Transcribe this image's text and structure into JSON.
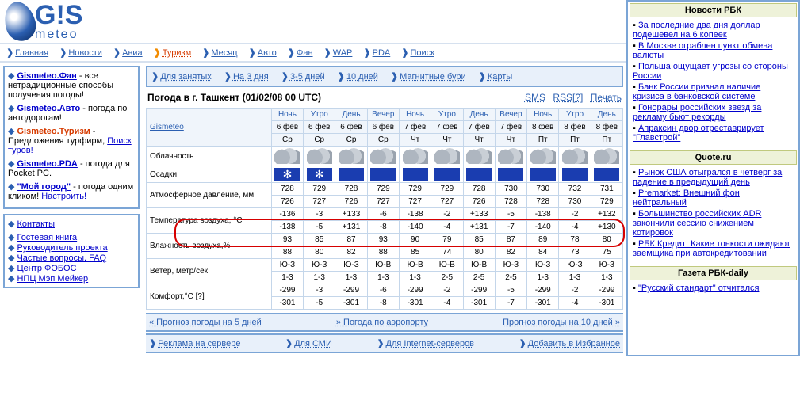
{
  "logo": {
    "brand": "G!S",
    "sub": "meteo"
  },
  "topnav": [
    {
      "label": "Главная"
    },
    {
      "label": "Новости"
    },
    {
      "label": "Авиа"
    },
    {
      "label": "Туризм",
      "active": true
    },
    {
      "label": "Месяц"
    },
    {
      "label": "Авто"
    },
    {
      "label": "Фан"
    },
    {
      "label": "WAP"
    },
    {
      "label": "PDA"
    },
    {
      "label": "Поиск"
    }
  ],
  "leftpromo": [
    {
      "t": "Gismeteo.Фан",
      "d": " - все нетрадиционные способы получения погоды!"
    },
    {
      "t": "Gismeteo.Авто",
      "d": " - погода по автодорогам!"
    },
    {
      "t": "Gismeteo.Туризм",
      "d": " - Предложения турфирм, ",
      "l": "Поиск туров!",
      "red": true
    },
    {
      "t": "Gismeteo.PDA",
      "d": " - погода для Pocket PC."
    },
    {
      "t": "\"Мой город\"",
      "d": " - погода одним кликом! ",
      "l": "Настроить!"
    }
  ],
  "leftlinks_title": "Контакты",
  "leftlinks": [
    "Гостевая книга",
    "Руководитель проекта",
    "Частые вопросы, FAQ",
    "Центр ФОБОС",
    "НПЦ Мэп Мейкер"
  ],
  "subnav": [
    "Для занятых",
    "На 3 дня",
    "3-5 дней",
    "10 дней",
    "Магнитные бури",
    "Карты"
  ],
  "forecast": {
    "title": "Погода в г. Ташкент",
    "stamp": "(01/02/08 00 UTC)",
    "rightlinks": [
      "SMS",
      "RSS[?]",
      "Печать"
    ],
    "corner": "Gismeteo",
    "cols": [
      {
        "p": "Ночь",
        "d": "6 фев",
        "w": "Ср"
      },
      {
        "p": "Утро",
        "d": "6 фев",
        "w": "Ср"
      },
      {
        "p": "День",
        "d": "6 фев",
        "w": "Ср"
      },
      {
        "p": "Вечер",
        "d": "6 фев",
        "w": "Ср"
      },
      {
        "p": "Ночь",
        "d": "7 фев",
        "w": "Чт"
      },
      {
        "p": "Утро",
        "d": "7 фев",
        "w": "Чт"
      },
      {
        "p": "День",
        "d": "7 фев",
        "w": "Чт"
      },
      {
        "p": "Вечер",
        "d": "7 фев",
        "w": "Чт"
      },
      {
        "p": "Ночь",
        "d": "8 фев",
        "w": "Пт"
      },
      {
        "p": "Утро",
        "d": "8 фев",
        "w": "Пт"
      },
      {
        "p": "День",
        "d": "8 фев",
        "w": "Пт"
      }
    ],
    "rows": {
      "cloud_label": "Облачность",
      "precip_label": "Осадки",
      "precip": [
        "snow",
        "snow",
        "rain",
        "rain",
        "rain",
        "rain",
        "rain",
        "rain",
        "rain",
        "rain",
        "rain"
      ],
      "pressure_label": "Атмосферное давление, мм",
      "pressure": [
        [
          "728",
          "729",
          "728",
          "729",
          "729",
          "729",
          "728",
          "730",
          "730",
          "732",
          "731"
        ],
        [
          "726",
          "727",
          "726",
          "727",
          "727",
          "727",
          "726",
          "728",
          "728",
          "730",
          "729"
        ]
      ],
      "temp_label": "Температура воздуха, °С",
      "temp": [
        [
          "-136",
          "-3",
          "+133",
          "-6",
          "-138",
          "-2",
          "+133",
          "-5",
          "-138",
          "-2",
          "+132"
        ],
        [
          "-138",
          "-5",
          "+131",
          "-8",
          "-140",
          "-4",
          "+131",
          "-7",
          "-140",
          "-4",
          "+130"
        ]
      ],
      "hum_label": "Влажность воздуха,%",
      "hum": [
        [
          "93",
          "85",
          "87",
          "93",
          "90",
          "79",
          "85",
          "87",
          "89",
          "78",
          "80"
        ],
        [
          "88",
          "80",
          "82",
          "88",
          "85",
          "74",
          "80",
          "82",
          "84",
          "73",
          "75"
        ]
      ],
      "wind_label": "Ветер, метр/сек",
      "wind": [
        [
          "Ю-З",
          "Ю-З",
          "Ю-З",
          "Ю-В",
          "Ю-В",
          "Ю-В",
          "Ю-В",
          "Ю-З",
          "Ю-З",
          "Ю-З",
          "Ю-З"
        ],
        [
          "1-3",
          "1-3",
          "1-3",
          "1-3",
          "1-3",
          "2-5",
          "2-5",
          "2-5",
          "1-3",
          "1-3",
          "1-3"
        ]
      ],
      "comf_label": "Комфорт,°С [?]",
      "comf": [
        [
          "-299",
          "-3",
          "-299",
          "-6",
          "-299",
          "-2",
          "-299",
          "-5",
          "-299",
          "-2",
          "-299"
        ],
        [
          "-301",
          "-5",
          "-301",
          "-8",
          "-301",
          "-4",
          "-301",
          "-7",
          "-301",
          "-4",
          "-301"
        ]
      ]
    },
    "bottomlinks": [
      "« Прогноз погоды на 5 дней",
      "» Погода по аэропорту",
      "Прогноз погоды на 10 дней »"
    ]
  },
  "footer": [
    "Реклама на сервере",
    "Для СМИ",
    "Для Internet-серверов",
    "Добавить в Избранное"
  ],
  "news": [
    {
      "title": "Новости РБК",
      "items": [
        "За последние два дня доллар подешевел на 6 копеек",
        "В Москве ограблен пункт обмена валюты",
        "Польша ощущает угрозы со стороны России",
        "Банк России признал наличие кризиса в банковской системе",
        "Гонорары российских звезд за рекламу бьют рекорды",
        "Апраксин двор отреставрирует \"Главстрой\""
      ]
    },
    {
      "title": "Quote.ru",
      "items": [
        "Рынок США отыгрался в четверг за падение в предыдущий день",
        "Premarket: Внешний фон нейтральный",
        "Большинство российских ADR закончили сессию снижением котировок",
        "РБК.Кредит: Какие тонкости ожидают заемщика при автокредитовании"
      ]
    },
    {
      "title": "Газета РБК-daily",
      "items": [
        "\"Русский стандарт\" отчитался"
      ]
    }
  ],
  "colors": {
    "border": "#7ba5d6",
    "accent": "#2b5fb1",
    "active": "#d63b00"
  }
}
